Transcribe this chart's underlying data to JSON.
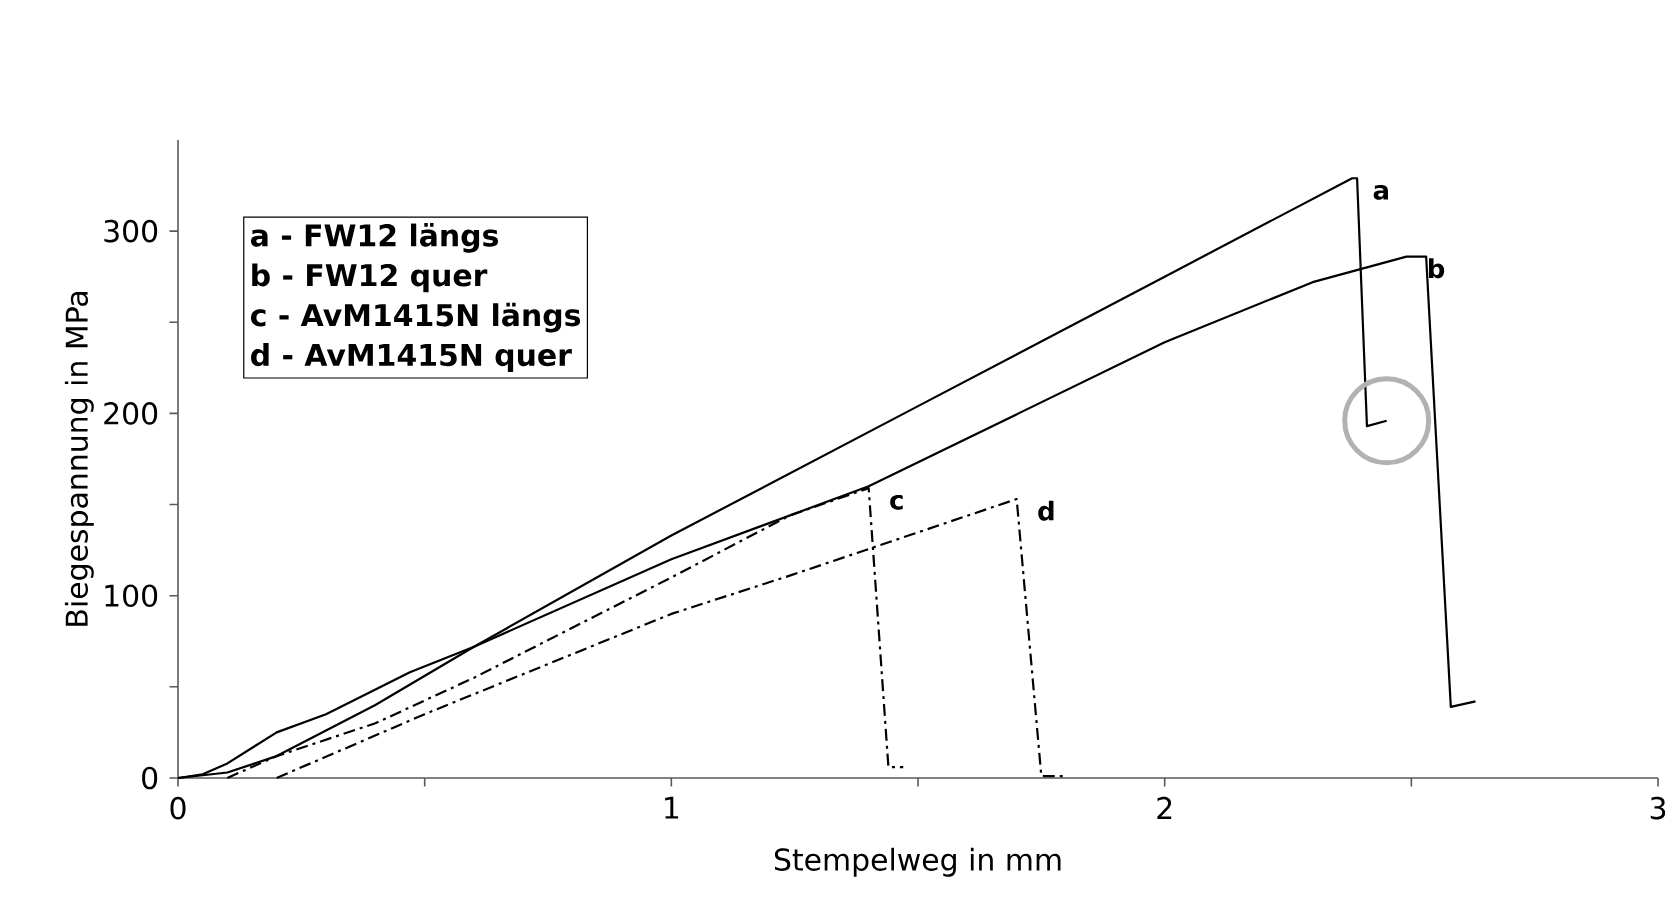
{
  "chart_data": {
    "type": "line",
    "xlabel": "Stempelweg in mm",
    "ylabel": "Biegespannung in MPa",
    "xlim": [
      0,
      3
    ],
    "ylim": [
      0,
      350
    ],
    "xticks": [
      0,
      {
        "value": 0.5,
        "label": null
      },
      1,
      {
        "value": 1.5,
        "label": null
      },
      2,
      {
        "value": 2.5,
        "label": null
      },
      3
    ],
    "yticks": [
      0,
      {
        "value": 50,
        "label": null
      },
      100,
      {
        "value": 150,
        "label": null
      },
      200,
      {
        "value": 250,
        "label": null
      },
      300
    ],
    "annotations": [
      "a - FW12 längs",
      "b - FW12 quer",
      "c - AvM1415N längs",
      "d - AvM1415N quer"
    ],
    "series": [
      {
        "name": "a",
        "color": "#000000",
        "line_style": "solid",
        "x": [
          0,
          0.05,
          0.1,
          0.2,
          0.3,
          0.47,
          0.6,
          1,
          1.5,
          2,
          2.38,
          2.39,
          2.41,
          2.45
        ],
        "values": [
          0,
          2,
          8,
          25,
          35,
          58,
          72,
          133,
          204,
          275,
          329,
          329,
          193,
          196
        ]
      },
      {
        "name": "b",
        "color": "#000000",
        "line_style": "solid",
        "x": [
          0,
          0.1,
          0.2,
          0.4,
          0.6,
          1,
          1.4,
          2,
          2.3,
          2.49,
          2.53,
          2.58,
          2.63
        ],
        "values": [
          0,
          3,
          12,
          40,
          72,
          120,
          160,
          239,
          272,
          286,
          286,
          39,
          42
        ]
      },
      {
        "name": "c",
        "color": "#000000",
        "line_style": "dashdot",
        "x": [
          0.1,
          0.2,
          0.4,
          0.6,
          1,
          1.24,
          1.4,
          1.44,
          1.47
        ],
        "values": [
          0,
          12,
          30,
          55,
          110,
          144,
          159,
          6,
          6
        ]
      },
      {
        "name": "d",
        "color": "#000000",
        "line_style": "dashdot",
        "x": [
          0.2,
          0.5,
          1,
          1.24,
          1.7,
          1.75,
          1.8
        ],
        "values": [
          0,
          35,
          90,
          111,
          153,
          1,
          1
        ]
      }
    ]
  }
}
